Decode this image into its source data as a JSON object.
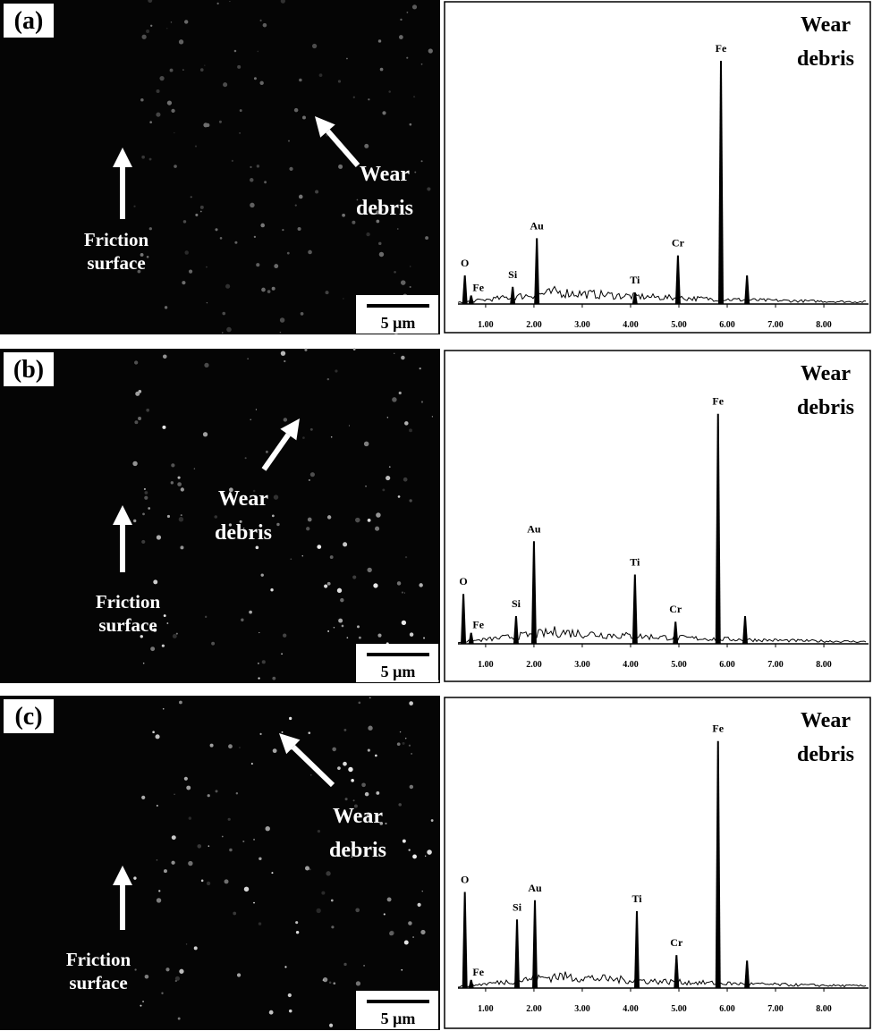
{
  "panels": [
    {
      "label": "(a)",
      "image": {
        "debris_label": [
          "Wear",
          "debris"
        ],
        "surface_label": [
          "Friction",
          "surface"
        ],
        "scale_bar": "5 μm"
      },
      "spectrum": {
        "title": [
          "Wear",
          "debris"
        ],
        "xlim": [
          0.15,
          8.98
        ],
        "ylim": [
          0,
          100
        ],
        "xticks": [
          {
            "value": 1,
            "label": "1.00"
          },
          {
            "value": 2,
            "label": "2.00"
          },
          {
            "value": 3,
            "label": "3.00"
          },
          {
            "value": 4,
            "label": "4.00"
          },
          {
            "value": 5,
            "label": "5.00"
          },
          {
            "value": 6,
            "label": "6.00"
          },
          {
            "value": 7,
            "label": "7.00"
          },
          {
            "value": 8,
            "label": "8.00"
          }
        ],
        "peaks": [
          {
            "label": "O",
            "x": 0.57,
            "height": 10
          },
          {
            "label": "Fe",
            "x": 0.7,
            "height": 3
          },
          {
            "label": "Si",
            "x": 1.56,
            "height": 6
          },
          {
            "label": "Au",
            "x": 2.06,
            "height": 23
          },
          {
            "label": "Ti",
            "x": 4.09,
            "height": 4
          },
          {
            "label": "Cr",
            "x": 4.98,
            "height": 17
          },
          {
            "label": "Fe",
            "x": 5.87,
            "height": 85
          },
          {
            "label": null,
            "x": 6.41,
            "height": 10
          }
        ]
      }
    },
    {
      "label": "(b)",
      "image": {
        "debris_label": [
          "Wear",
          "debris"
        ],
        "surface_label": [
          "Friction",
          "surface"
        ],
        "scale_bar": "5 μm"
      },
      "spectrum": {
        "title": [
          "Wear",
          "debris"
        ],
        "xlim": [
          0.15,
          8.98
        ],
        "ylim": [
          0,
          100
        ],
        "xticks": [
          {
            "value": 1,
            "label": "1.00"
          },
          {
            "value": 2,
            "label": "2.00"
          },
          {
            "value": 3,
            "label": "3.00"
          },
          {
            "value": 4,
            "label": "4.00"
          },
          {
            "value": 5,
            "label": "5.00"
          },
          {
            "value": 6,
            "label": "6.00"
          },
          {
            "value": 7,
            "label": "7.00"
          },
          {
            "value": 8,
            "label": "8.00"
          }
        ],
        "peaks": [
          {
            "label": "O",
            "x": 0.54,
            "height": 18
          },
          {
            "label": "Fe",
            "x": 0.7,
            "height": 4
          },
          {
            "label": "Si",
            "x": 1.63,
            "height": 10
          },
          {
            "label": "Au",
            "x": 2.0,
            "height": 37
          },
          {
            "label": "Ti",
            "x": 4.09,
            "height": 25
          },
          {
            "label": "Cr",
            "x": 4.93,
            "height": 8
          },
          {
            "label": "Fe",
            "x": 5.81,
            "height": 83
          },
          {
            "label": null,
            "x": 6.37,
            "height": 10
          }
        ]
      }
    },
    {
      "label": "(c)",
      "image": {
        "debris_label": [
          "Wear",
          "debris"
        ],
        "surface_label": [
          "Friction",
          "surface"
        ],
        "scale_bar": "5 μm"
      },
      "spectrum": {
        "title": [
          "Wear",
          "debris"
        ],
        "xlim": [
          0.15,
          8.98
        ],
        "ylim": [
          0,
          100
        ],
        "xticks": [
          {
            "value": 1,
            "label": "1.00"
          },
          {
            "value": 2,
            "label": "2.00"
          },
          {
            "value": 3,
            "label": "3.00"
          },
          {
            "value": 4,
            "label": "4.00"
          },
          {
            "value": 5,
            "label": "5.00"
          },
          {
            "value": 6,
            "label": "6.00"
          },
          {
            "value": 7,
            "label": "7.00"
          },
          {
            "value": 8,
            "label": "8.00"
          }
        ],
        "peaks": [
          {
            "label": "O",
            "x": 0.57,
            "height": 35
          },
          {
            "label": "Fe",
            "x": 0.7,
            "height": 3
          },
          {
            "label": "Si",
            "x": 1.65,
            "height": 25
          },
          {
            "label": "Au",
            "x": 2.02,
            "height": 32
          },
          {
            "label": "Ti",
            "x": 4.13,
            "height": 28
          },
          {
            "label": "Cr",
            "x": 4.95,
            "height": 12
          },
          {
            "label": "Fe",
            "x": 5.81,
            "height": 90
          },
          {
            "label": null,
            "x": 6.41,
            "height": 10
          }
        ]
      }
    }
  ]
}
